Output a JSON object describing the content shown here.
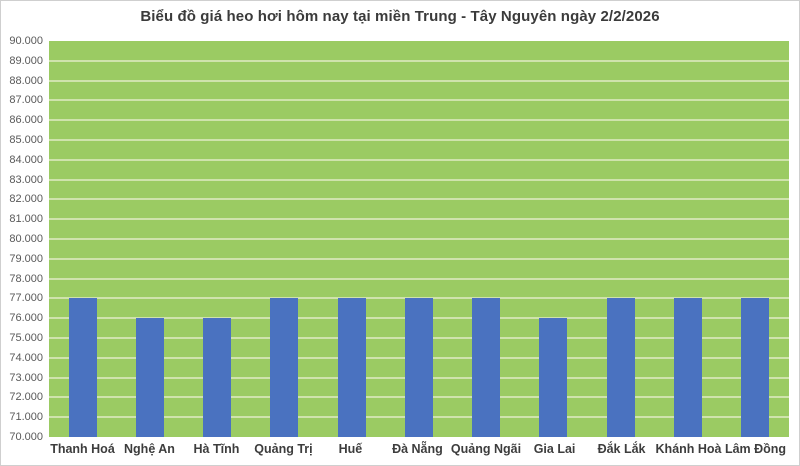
{
  "window": {
    "background": "#ffffff",
    "border_color": "#cfcfcf"
  },
  "chart_data": {
    "type": "bar",
    "title": "Biểu đồ giá heo hơi hôm nay tại miền Trung - Tây Nguyên ngày 2/2/2026",
    "categories": [
      "Thanh Hoá",
      "Nghệ An",
      "Hà Tĩnh",
      "Quảng Trị",
      "Huế",
      "Đà Nẵng",
      "Quảng Ngãi",
      "Gia Lai",
      "Đắk Lắk",
      "Khánh Hoà",
      "Lâm Đồng"
    ],
    "values": [
      77000,
      76000,
      76000,
      77000,
      77000,
      77000,
      77000,
      76000,
      77000,
      77000,
      77000
    ],
    "xlabel": "",
    "ylabel": "",
    "ylim": [
      70000,
      90000
    ],
    "tick_step": 1000,
    "y_ticks": [
      "90.000",
      "89.000",
      "88.000",
      "87.000",
      "86.000",
      "85.000",
      "84.000",
      "83.000",
      "82.000",
      "81.000",
      "80.000",
      "79.000",
      "78.000",
      "77.000",
      "76.000",
      "75.000",
      "74.000",
      "73.000",
      "72.000",
      "71.000",
      "70.000"
    ],
    "grid": true,
    "legend": false,
    "plot_bg": "#9BCB63",
    "gridline_color": "#CFE3AC",
    "bar_color": "#4A72C0",
    "title_color": "#3b3b3b",
    "y_tick_color": "#595959",
    "x_tick_color": "#3d3d3d"
  }
}
